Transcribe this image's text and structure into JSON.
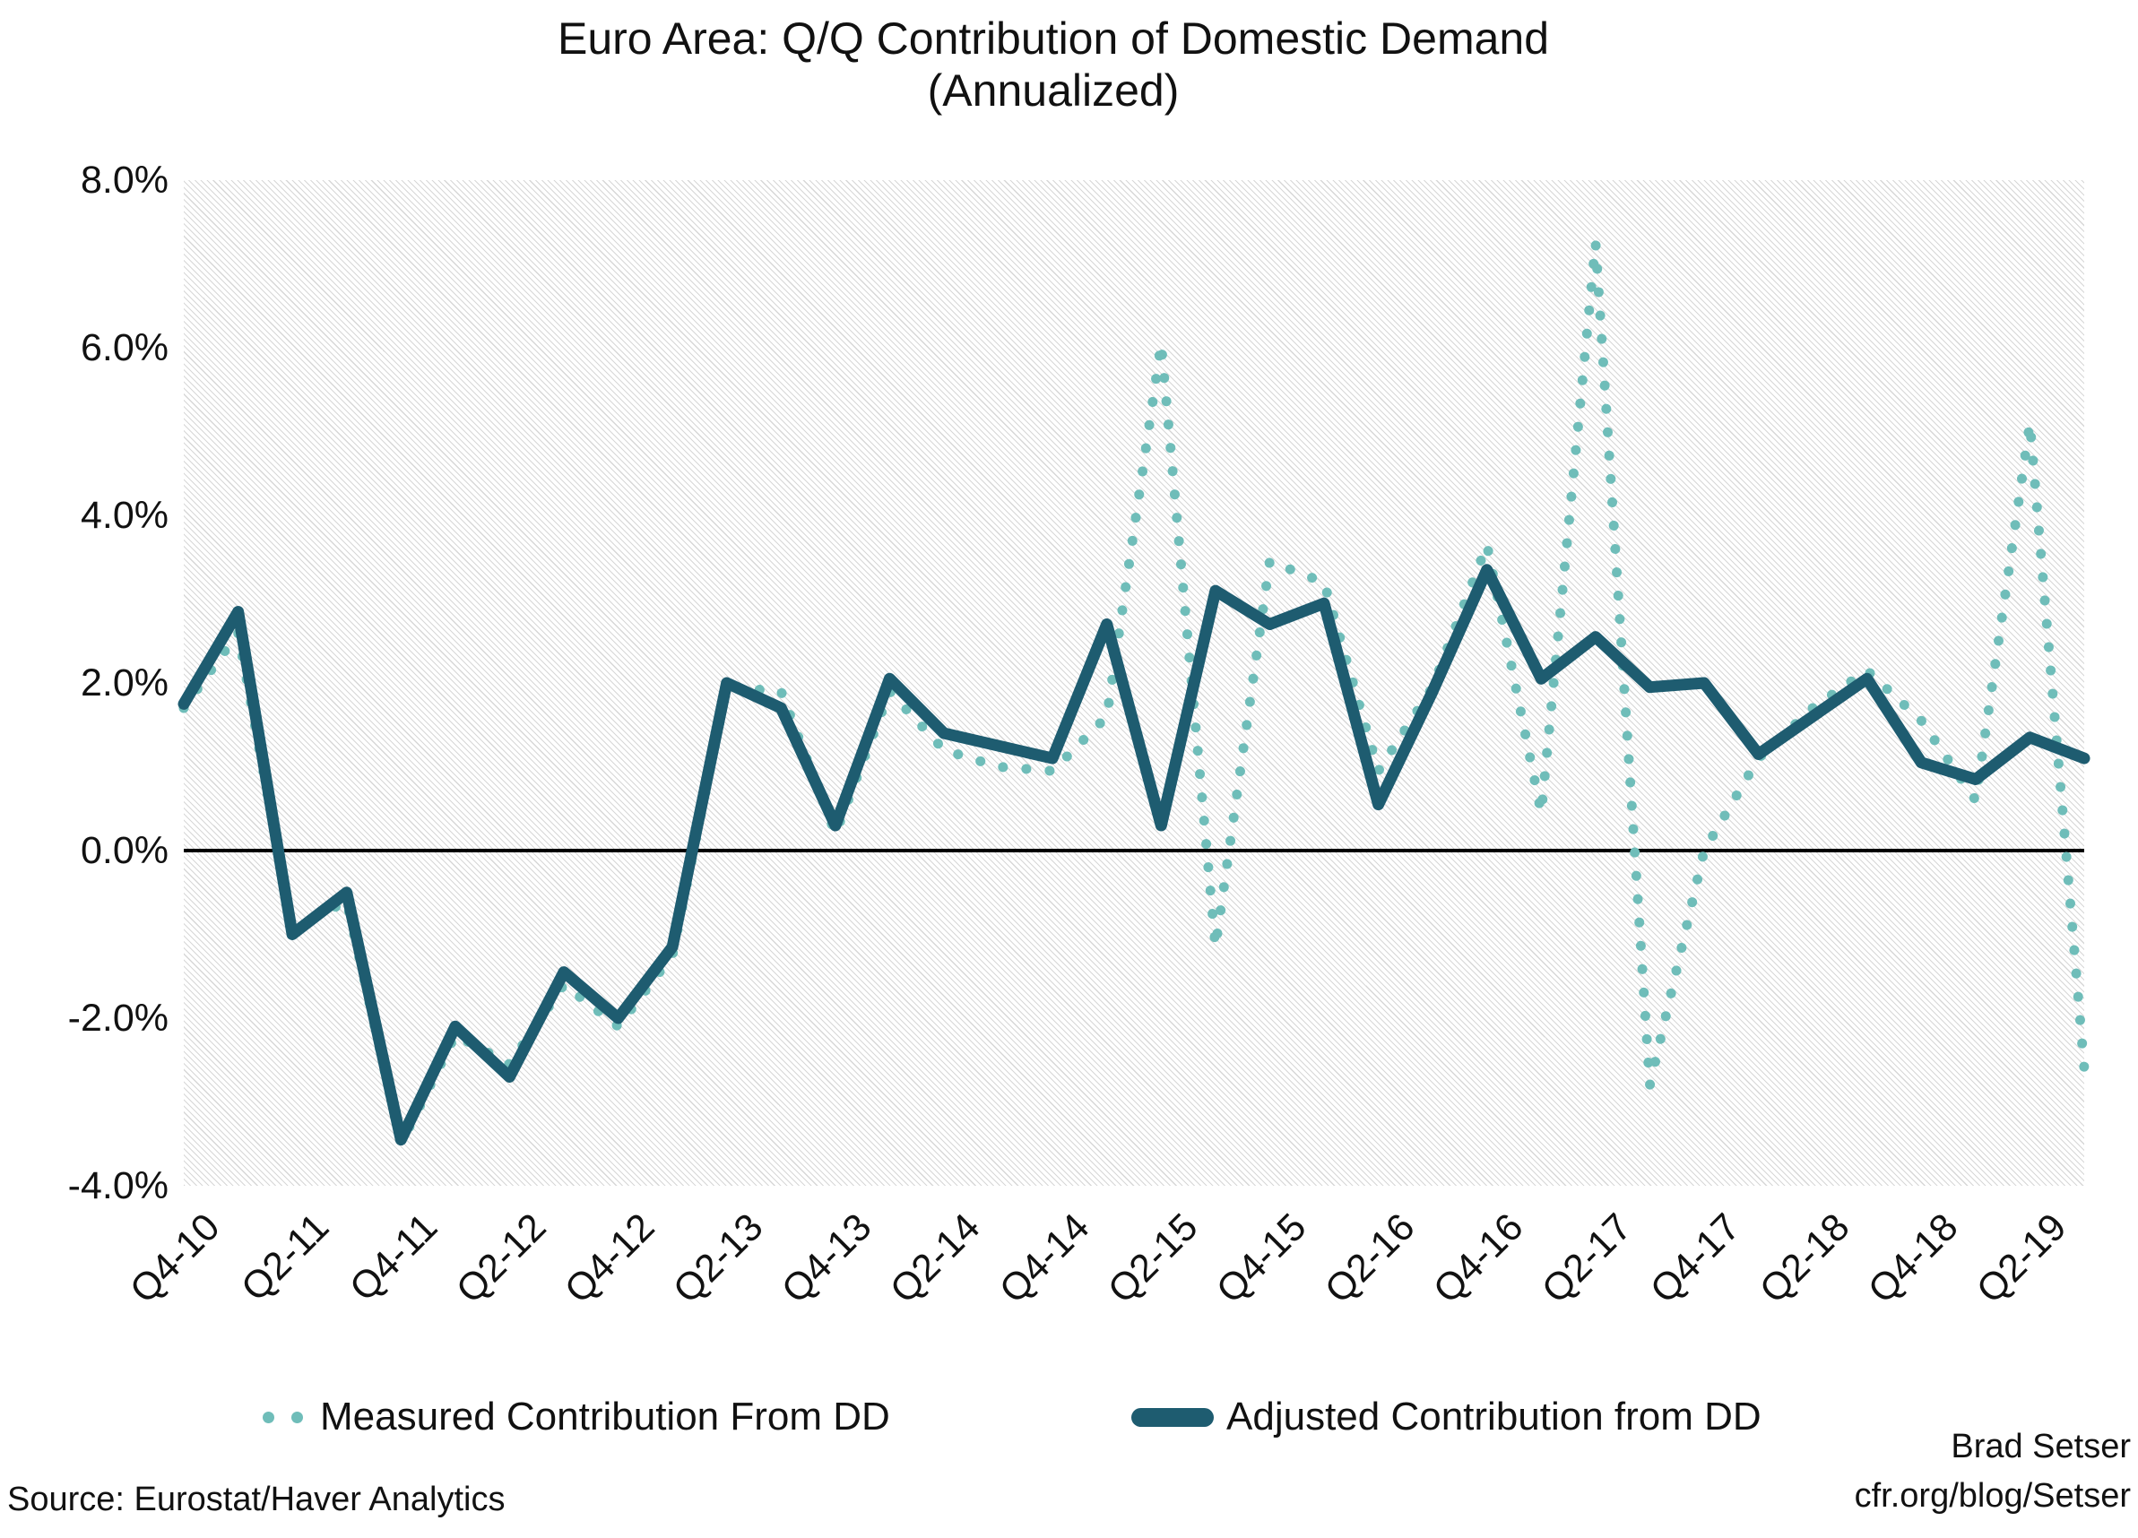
{
  "title": {
    "line1": "Euro Area: Q/Q Contribution of Domestic Demand",
    "line2": "(Annualized)"
  },
  "y_axis": {
    "tick_labels": [
      "8.0%",
      "6.0%",
      "4.0%",
      "2.0%",
      "0.0%",
      "-2.0%",
      "-4.0%"
    ]
  },
  "x_axis": {
    "tick_labels": [
      "Q4-10",
      "Q2-11",
      "Q4-11",
      "Q2-12",
      "Q4-12",
      "Q2-13",
      "Q4-13",
      "Q2-14",
      "Q4-14",
      "Q2-15",
      "Q4-15",
      "Q2-16",
      "Q4-16",
      "Q2-17",
      "Q4-17",
      "Q2-18",
      "Q4-18",
      "Q2-19"
    ]
  },
  "legend": {
    "measured_label": "Measured Contribution From DD",
    "adjusted_label": "Adjusted Contribution from DD"
  },
  "source": "Source: Eurostat/Haver Analytics",
  "credit": {
    "line1": "Brad Setser",
    "line2": "cfr.org/blog/Setser"
  },
  "colors": {
    "measured": "#6fbdb9",
    "adjusted": "#1e5c70",
    "zero_axis": "#000000",
    "text": "#111111",
    "hatch": "#d7d7d7",
    "background": "#ffffff"
  },
  "chart_data": {
    "type": "line",
    "x": [
      "Q4-10",
      "Q1-11",
      "Q2-11",
      "Q3-11",
      "Q4-11",
      "Q1-12",
      "Q2-12",
      "Q3-12",
      "Q4-12",
      "Q1-13",
      "Q2-13",
      "Q3-13",
      "Q4-13",
      "Q1-14",
      "Q2-14",
      "Q3-14",
      "Q4-14",
      "Q1-15",
      "Q2-15",
      "Q3-15",
      "Q4-15",
      "Q1-16",
      "Q2-16",
      "Q3-16",
      "Q4-16",
      "Q1-17",
      "Q2-17",
      "Q3-17",
      "Q4-17",
      "Q1-18",
      "Q2-18",
      "Q3-18",
      "Q4-18",
      "Q1-19",
      "Q2-19",
      "Q3-19"
    ],
    "series": [
      {
        "name": "Measured Contribution From DD",
        "style": "dotted",
        "values": [
          1.7,
          2.6,
          -0.95,
          -0.6,
          -3.5,
          -2.2,
          -2.55,
          -1.6,
          -2.1,
          -1.25,
          1.95,
          1.9,
          0.2,
          1.9,
          1.2,
          1.0,
          0.95,
          1.6,
          6.05,
          -1.15,
          3.45,
          3.2,
          0.95,
          1.95,
          3.65,
          0.45,
          7.25,
          -2.8,
          0.0,
          1.1,
          1.7,
          2.15,
          1.55,
          0.6,
          5.1,
          -2.6
        ]
      },
      {
        "name": "Adjusted Contribution from DD",
        "style": "solid",
        "values": [
          1.75,
          2.85,
          -1.0,
          -0.5,
          -3.45,
          -2.1,
          -2.7,
          -1.45,
          -2.0,
          -1.15,
          2.0,
          1.7,
          0.3,
          2.05,
          1.4,
          1.25,
          1.1,
          2.7,
          0.3,
          3.1,
          2.7,
          2.95,
          0.55,
          1.9,
          3.35,
          2.05,
          2.55,
          1.95,
          2.0,
          1.15,
          1.6,
          2.05,
          1.05,
          0.85,
          1.35,
          1.1
        ]
      }
    ],
    "ylim": [
      -4,
      8
    ],
    "y_ticks": [
      8,
      6,
      4,
      2,
      0,
      -2,
      -4
    ],
    "x_tick_every": 2,
    "grid": "none",
    "zero_line": true,
    "legend_position": "bottom",
    "title": "Euro Area: Q/Q Contribution of Domestic Demand (Annualized)"
  }
}
